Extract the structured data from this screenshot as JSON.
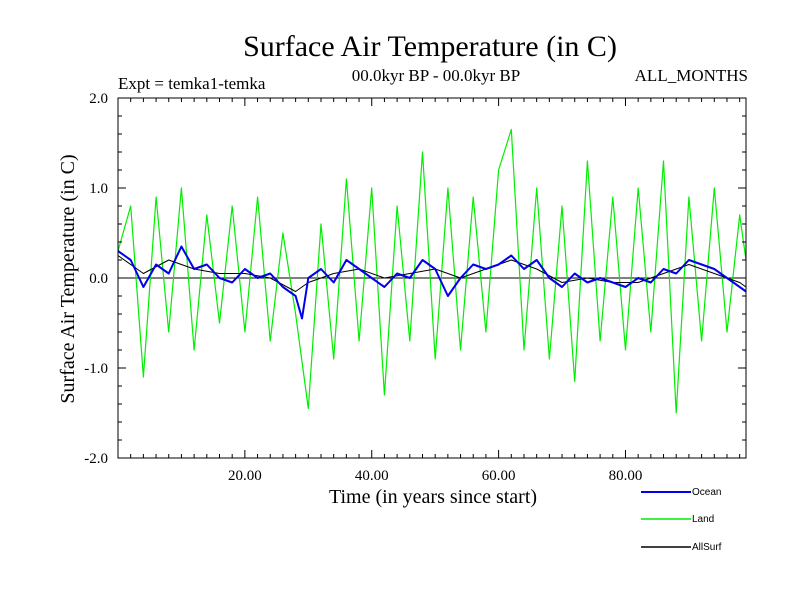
{
  "chart_data": {
    "type": "line",
    "title": "Surface Air Temperature (in C)",
    "subtitle_left": "Expt = temka1-temka",
    "subtitle_center": "00.0kyr BP - 00.0kyr BP",
    "subtitle_right": "ALL_MONTHS",
    "xlabel": "Time (in years since start)",
    "ylabel": "Surface Air Temperature (in C)",
    "xlim": [
      0,
      99
    ],
    "ylim": [
      -2.0,
      2.0
    ],
    "x_ticks": [
      {
        "value": 20,
        "label": "20.00"
      },
      {
        "value": 40,
        "label": "40.00"
      },
      {
        "value": 60,
        "label": "60.00"
      },
      {
        "value": 80,
        "label": "80.00"
      }
    ],
    "y_ticks": [
      {
        "value": 2.0,
        "label": "2.0"
      },
      {
        "value": 1.0,
        "label": "1.0"
      },
      {
        "value": 0.0,
        "label": "0.0"
      },
      {
        "value": -1.0,
        "label": "-1.0"
      },
      {
        "value": -2.0,
        "label": "-2.0"
      }
    ],
    "zero_line": true,
    "legend_position": "bottom-right",
    "series": [
      {
        "name": "Land",
        "color": "#00ee00",
        "x": [
          0,
          2,
          4,
          6,
          8,
          10,
          12,
          14,
          16,
          18,
          20,
          22,
          24,
          26,
          28,
          30,
          32,
          34,
          36,
          38,
          40,
          42,
          44,
          46,
          48,
          50,
          52,
          54,
          56,
          58,
          60,
          62,
          64,
          66,
          68,
          70,
          72,
          74,
          76,
          78,
          80,
          82,
          84,
          86,
          88,
          90,
          92,
          94,
          96,
          98,
          99
        ],
        "values": [
          0.3,
          0.8,
          -1.1,
          0.9,
          -0.6,
          1.0,
          -0.8,
          0.7,
          -0.5,
          0.8,
          -0.6,
          0.9,
          -0.7,
          0.5,
          -0.4,
          -1.45,
          0.6,
          -0.9,
          1.1,
          -0.7,
          1.0,
          -1.3,
          0.8,
          -0.7,
          1.4,
          -0.9,
          1.0,
          -0.8,
          0.9,
          -0.6,
          1.2,
          1.65,
          -0.8,
          1.0,
          -0.9,
          0.8,
          -1.15,
          1.3,
          -0.7,
          0.9,
          -0.8,
          1.0,
          -0.6,
          1.3,
          -1.5,
          0.9,
          -0.7,
          1.0,
          -0.6,
          0.7,
          0.2
        ]
      },
      {
        "name": "Ocean",
        "color": "#0000ee",
        "x": [
          0,
          2,
          4,
          6,
          8,
          10,
          12,
          14,
          16,
          18,
          20,
          22,
          24,
          26,
          28,
          29,
          30,
          32,
          34,
          36,
          38,
          40,
          42,
          44,
          46,
          48,
          50,
          52,
          54,
          56,
          58,
          60,
          62,
          64,
          66,
          68,
          70,
          72,
          74,
          76,
          78,
          80,
          82,
          84,
          86,
          88,
          90,
          92,
          94,
          96,
          98,
          99
        ],
        "values": [
          0.3,
          0.2,
          -0.1,
          0.15,
          0.05,
          0.35,
          0.1,
          0.15,
          0.0,
          -0.05,
          0.1,
          0.0,
          0.05,
          -0.1,
          -0.2,
          -0.45,
          0.0,
          0.1,
          -0.05,
          0.2,
          0.1,
          0.0,
          -0.1,
          0.05,
          0.0,
          0.2,
          0.1,
          -0.2,
          0.0,
          0.15,
          0.1,
          0.15,
          0.25,
          0.1,
          0.2,
          0.0,
          -0.1,
          0.05,
          -0.05,
          0.0,
          -0.05,
          -0.1,
          0.0,
          -0.05,
          0.1,
          0.05,
          0.2,
          0.15,
          0.1,
          0.0,
          -0.1,
          -0.15
        ]
      },
      {
        "name": "AllSurf",
        "color": "#000000",
        "x": [
          0,
          4,
          8,
          12,
          16,
          20,
          24,
          28,
          30,
          34,
          38,
          42,
          46,
          50,
          54,
          58,
          62,
          66,
          70,
          74,
          78,
          82,
          86,
          90,
          94,
          98,
          99
        ],
        "values": [
          0.25,
          0.05,
          0.2,
          0.1,
          0.05,
          0.05,
          0.0,
          -0.15,
          -0.05,
          0.05,
          0.1,
          0.0,
          0.05,
          0.1,
          0.0,
          0.1,
          0.2,
          0.1,
          -0.05,
          0.0,
          -0.05,
          -0.05,
          0.05,
          0.15,
          0.05,
          -0.05,
          -0.1
        ]
      }
    ]
  }
}
